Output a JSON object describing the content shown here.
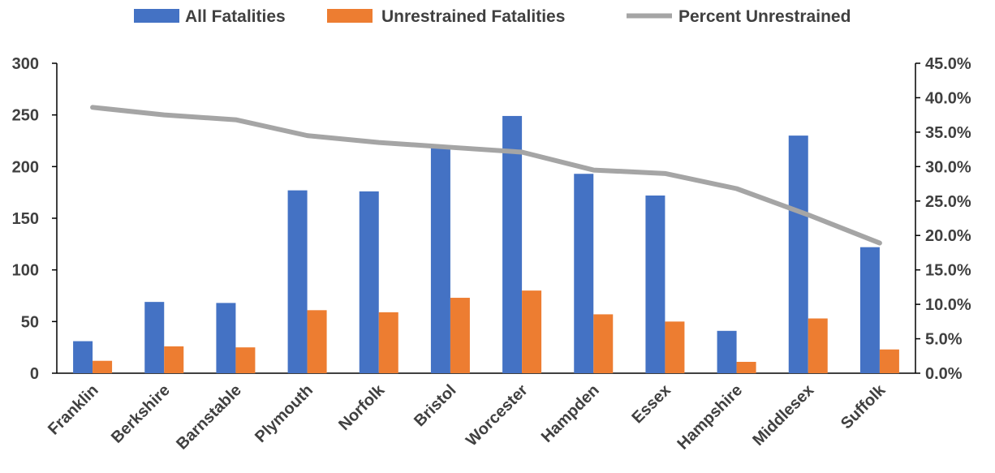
{
  "chart_data": {
    "type": "bar",
    "categories": [
      "Franklin",
      "Berkshire",
      "Barnstable",
      "Plymouth",
      "Norfolk",
      "Bristol",
      "Worcester",
      "Hampden",
      "Essex",
      "Hampshire",
      "Middlesex",
      "Suffolk"
    ],
    "series": [
      {
        "name": "All Fatalities",
        "type": "bar",
        "axis": "left",
        "color": "#4472C4",
        "values": [
          31,
          69,
          68,
          177,
          176,
          220,
          249,
          193,
          172,
          41,
          230,
          122
        ]
      },
      {
        "name": "Unrestrained Fatalities",
        "type": "bar",
        "axis": "left",
        "color": "#ED7D31",
        "values": [
          12,
          26,
          25,
          61,
          59,
          73,
          80,
          57,
          50,
          11,
          53,
          23
        ]
      },
      {
        "name": "Percent Unrestrained",
        "type": "line",
        "axis": "right",
        "color": "#A5A5A5",
        "values": [
          38.6,
          37.5,
          36.8,
          34.5,
          33.5,
          32.8,
          32.1,
          29.5,
          29.0,
          26.8,
          23.0,
          18.9
        ]
      }
    ],
    "y_left": {
      "min": 0,
      "max": 300,
      "ticks": [
        "0",
        "50",
        "100",
        "150",
        "200",
        "250",
        "300"
      ]
    },
    "y_right": {
      "min": 0,
      "max": 45,
      "ticks": [
        "0.0%",
        "5.0%",
        "10.0%",
        "15.0%",
        "20.0%",
        "25.0%",
        "30.0%",
        "35.0%",
        "40.0%",
        "45.0%"
      ]
    },
    "grid": false,
    "legend_position": "top"
  }
}
